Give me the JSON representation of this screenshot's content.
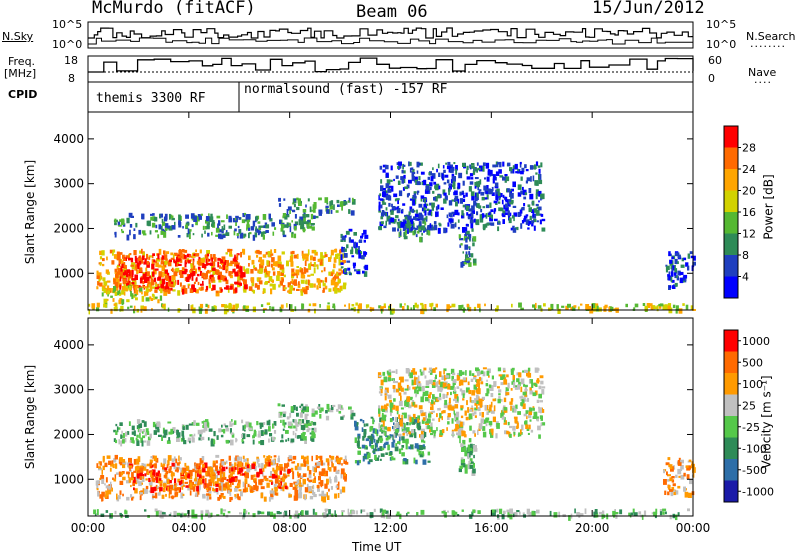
{
  "header": {
    "station": "McMurdo (fitACF)",
    "beam": "Beam 06",
    "date": "15/Jun/2012"
  },
  "strip_labels": {
    "nsky": "N.Sky",
    "freq_line1": "Freq.",
    "freq_line2": "[MHz]",
    "cpid": "CPID",
    "nsearch": "N.Search",
    "nave": "Nave",
    "nsky_ticks": [
      "10^5",
      "10^0"
    ],
    "nsearch_ticks": [
      "10^5",
      "10^0"
    ],
    "freq_ticks": [
      "18",
      "8"
    ],
    "nave_ticks": [
      "60",
      "0"
    ]
  },
  "cpid_programs": [
    {
      "label": "themis 3300 RF",
      "start_hour": 0,
      "end_hour": 6
    },
    {
      "label": "normalsound (fast) -157 RF",
      "start_hour": 6,
      "end_hour": 24
    }
  ],
  "colors": {
    "power": [
      "#0000ff",
      "#1f3fbf",
      "#2e8b57",
      "#55b832",
      "#d2d200",
      "#ffa500",
      "#ff6a00",
      "#ff0000"
    ],
    "velocity": [
      "#1a1aa8",
      "#2d6ea8",
      "#2e8b57",
      "#55c84a",
      "#c0c0c0",
      "#ff9a00",
      "#ff6a00",
      "#ff0000"
    ]
  },
  "chart_data": [
    {
      "type": "heatmap",
      "title": "",
      "xlabel": "Time UT",
      "ylabel": "Slant Range [km]",
      "xlim": [
        "00:00",
        "00:00"
      ],
      "ylim": [
        180,
        4600
      ],
      "x_ticks": [
        "00:00",
        "04:00",
        "08:00",
        "12:00",
        "16:00",
        "20:00",
        "00:00"
      ],
      "y_ticks": [
        1000,
        2000,
        3000,
        4000
      ],
      "colorbar": {
        "label": "Power [dB]",
        "ticks": [
          4,
          8,
          12,
          16,
          20,
          24,
          28
        ]
      },
      "regions": [
        {
          "t0": 0.3,
          "t1": 10.2,
          "r0": 600,
          "r1": 1550,
          "level": 5
        },
        {
          "t0": 1.2,
          "t1": 6.2,
          "r0": 650,
          "r1": 1450,
          "level": 7
        },
        {
          "t0": 0.5,
          "t1": 3.0,
          "r0": 400,
          "r1": 750,
          "level": 4
        },
        {
          "t0": 1.0,
          "t1": 9.0,
          "r0": 1850,
          "r1": 2350,
          "level": 2
        },
        {
          "t0": 7.5,
          "t1": 10.5,
          "r0": 2400,
          "r1": 2700,
          "level": 2
        },
        {
          "t0": 10.0,
          "t1": 11.0,
          "r0": 1000,
          "r1": 2000,
          "level": 1
        },
        {
          "t0": 12.2,
          "t1": 13.5,
          "r0": 1800,
          "r1": 2400,
          "level": 2
        },
        {
          "t0": 14.7,
          "t1": 15.3,
          "r0": 1200,
          "r1": 1950,
          "level": 2
        },
        {
          "t0": 11.5,
          "t1": 18.0,
          "r0": 2000,
          "r1": 3500,
          "level": 1
        },
        {
          "t0": 22.8,
          "t1": 24.0,
          "r0": 700,
          "r1": 1500,
          "level": 1
        },
        {
          "t0": 0.0,
          "t1": 24.0,
          "r0": 200,
          "r1": 350,
          "level": 4
        }
      ]
    },
    {
      "type": "heatmap",
      "title": "",
      "xlabel": "Time UT",
      "ylabel": "Slant Range [km]",
      "xlim": [
        "00:00",
        "00:00"
      ],
      "ylim": [
        180,
        4600
      ],
      "x_ticks": [
        "00:00",
        "04:00",
        "08:00",
        "12:00",
        "16:00",
        "20:00",
        "00:00"
      ],
      "y_ticks": [
        1000,
        2000,
        3000,
        4000
      ],
      "colorbar": {
        "label": "Velocity [m s⁻¹]",
        "ticks": [
          1000,
          500,
          100,
          25,
          -25,
          -100,
          -500,
          -1000
        ]
      },
      "regions": [
        {
          "t0": 0.3,
          "t1": 10.2,
          "r0": 600,
          "r1": 1550,
          "level": 5
        },
        {
          "t0": 1.5,
          "t1": 8.0,
          "r0": 800,
          "r1": 1400,
          "level": 6
        },
        {
          "t0": 1.0,
          "t1": 9.0,
          "r0": 1850,
          "r1": 2350,
          "level": 3
        },
        {
          "t0": 7.5,
          "t1": 10.5,
          "r0": 2400,
          "r1": 2700,
          "level": 3
        },
        {
          "t0": 10.5,
          "t1": 13.5,
          "r0": 1400,
          "r1": 2400,
          "level": 2
        },
        {
          "t0": 14.7,
          "t1": 15.3,
          "r0": 1200,
          "r1": 1950,
          "level": 3
        },
        {
          "t0": 11.5,
          "t1": 18.0,
          "r0": 2000,
          "r1": 3500,
          "level": 4
        },
        {
          "t0": 22.8,
          "t1": 24.0,
          "r0": 700,
          "r1": 1500,
          "level": 5
        },
        {
          "t0": 0.0,
          "t1": 24.0,
          "r0": 200,
          "r1": 350,
          "level": 3
        }
      ]
    }
  ]
}
